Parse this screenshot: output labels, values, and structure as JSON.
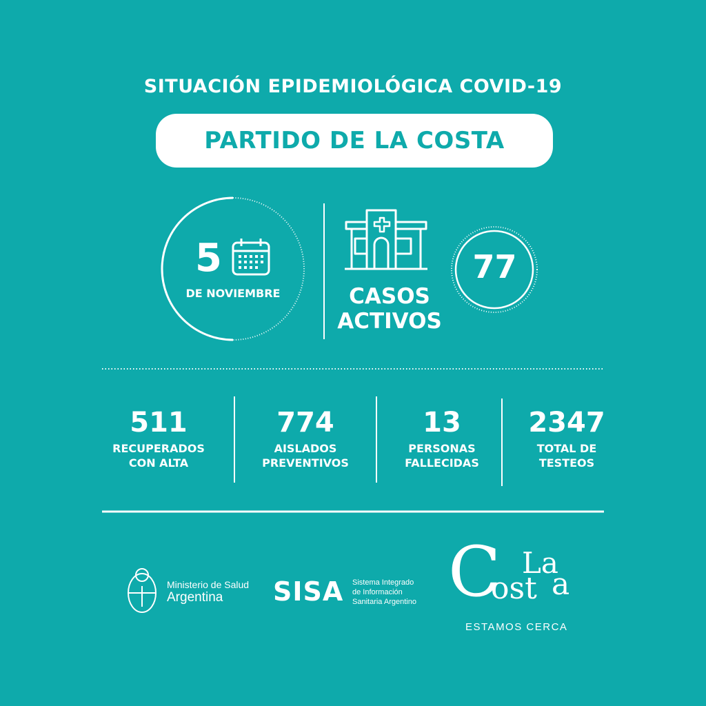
{
  "header": {
    "title": "SITUACIÓN EPIDEMIOLÓGICA COVID-19",
    "location": "PARTIDO DE LA COSTA"
  },
  "date": {
    "day": "5",
    "month": "DE NOVIEMBRE",
    "icon": "calendar-icon"
  },
  "active_cases": {
    "label_line1": "CASOS",
    "label_line2": "ACTIVOS",
    "value": "77",
    "icon": "hospital-icon"
  },
  "stats": [
    {
      "value": "511",
      "line1": "RECUPERADOS",
      "line2": "CON ALTA"
    },
    {
      "value": "774",
      "line1": "AISLADOS",
      "line2": "PREVENTIVOS"
    },
    {
      "value": "13",
      "line1": "PERSONAS",
      "line2": "FALLECIDAS"
    },
    {
      "value": "2347",
      "line1": "TOTAL DE",
      "line2": "TESTEOS"
    }
  ],
  "footer": {
    "ministerio_line1": "Ministerio de Salud",
    "ministerio_line2": "Argentina",
    "sisa_logo": "SISA",
    "sisa_line1": "Sistema Integrado",
    "sisa_line2": "de Información",
    "sisa_line3": "Sanitaria Argentino",
    "lacosta_logo": "La Costa",
    "lacosta_tagline": "ESTAMOS CERCA"
  },
  "colors": {
    "background": "#0eaaab",
    "foreground": "#ffffff"
  }
}
